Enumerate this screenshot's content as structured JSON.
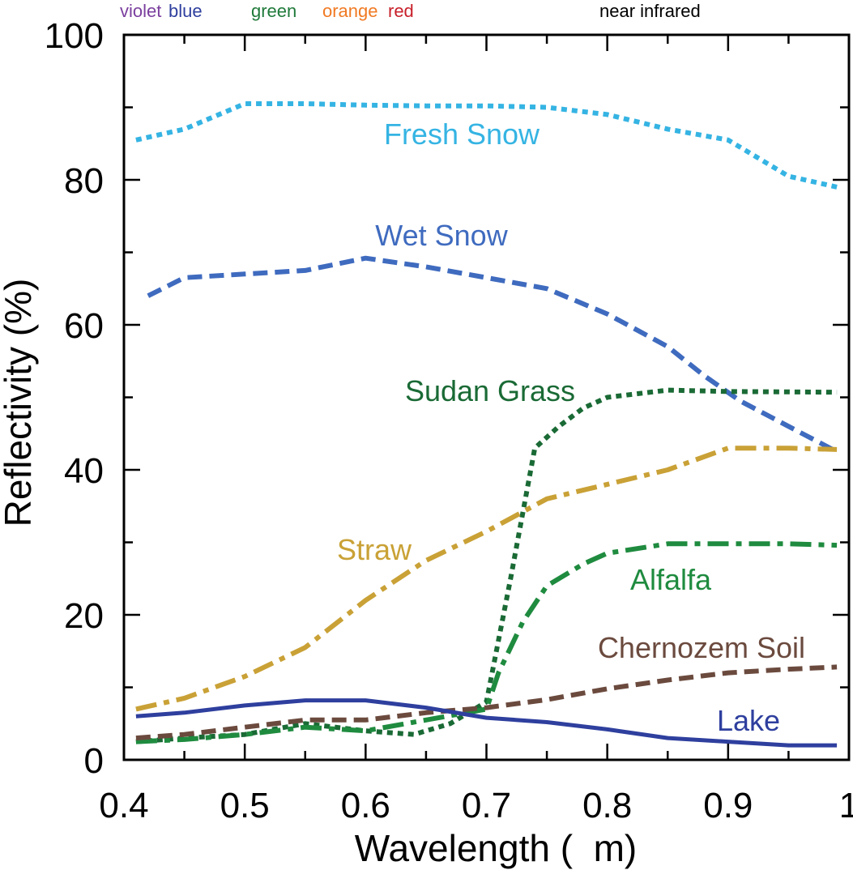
{
  "chart_data": {
    "type": "line",
    "xlabel": "Wavelength (  m)",
    "ylabel": "Reflectivity (%)",
    "xlim": [
      0.4,
      1.0
    ],
    "ylim": [
      0,
      100
    ],
    "x_ticks": [
      "0.4",
      "0.5",
      "0.6",
      "0.7",
      "0.8",
      "0.9",
      "1"
    ],
    "y_ticks": [
      "0",
      "20",
      "40",
      "60",
      "80",
      "100"
    ],
    "grid": false,
    "color_bands": [
      {
        "label": "violet",
        "color": "#7b3f9e"
      },
      {
        "label": "blue",
        "color": "#2e3f9e"
      },
      {
        "label": "green",
        "color": "#1f7a3a"
      },
      {
        "label": "orange",
        "color": "#f07a22"
      },
      {
        "label": "red",
        "color": "#c8202a"
      },
      {
        "label": "near infrared",
        "color": "#000000"
      }
    ],
    "series": [
      {
        "name": "Fresh Snow",
        "color": "#35b4e3",
        "style": "dotted",
        "x": [
          0.41,
          0.45,
          0.5,
          0.55,
          0.6,
          0.65,
          0.7,
          0.75,
          0.8,
          0.85,
          0.9,
          0.95,
          0.99
        ],
        "y": [
          85.5,
          87,
          90.5,
          90.5,
          90.3,
          90.2,
          90.2,
          90,
          89,
          87,
          85.5,
          80.5,
          79
        ]
      },
      {
        "name": "Wet Snow",
        "color": "#3f6bbf",
        "style": "dashed",
        "x": [
          0.42,
          0.45,
          0.5,
          0.55,
          0.6,
          0.65,
          0.7,
          0.75,
          0.8,
          0.85,
          0.88,
          0.91,
          0.95,
          0.99
        ],
        "y": [
          64,
          66.5,
          67,
          67.5,
          69.2,
          68,
          66.5,
          65,
          61.5,
          57,
          53,
          49.5,
          46,
          42.5
        ]
      },
      {
        "name": "Sudan Grass",
        "color": "#1a6a35",
        "style": "dotted",
        "x": [
          0.41,
          0.45,
          0.5,
          0.55,
          0.6,
          0.64,
          0.67,
          0.69,
          0.7,
          0.72,
          0.74,
          0.76,
          0.78,
          0.8,
          0.85,
          0.9,
          0.99
        ],
        "y": [
          2.5,
          3,
          3.5,
          5,
          4,
          3.5,
          5,
          7,
          8,
          25,
          43,
          46,
          48.5,
          50,
          51,
          50.8,
          50.7
        ]
      },
      {
        "name": "Straw",
        "color": "#c9a136",
        "style": "dashdot",
        "x": [
          0.41,
          0.45,
          0.5,
          0.55,
          0.6,
          0.65,
          0.7,
          0.75,
          0.8,
          0.85,
          0.9,
          0.95,
          0.99
        ],
        "y": [
          7,
          8.5,
          11.5,
          15.5,
          22,
          27.5,
          31.5,
          36,
          38,
          40,
          43,
          43,
          42.8
        ]
      },
      {
        "name": "Alfalfa",
        "color": "#1f8b3f",
        "style": "dashdot",
        "x": [
          0.41,
          0.45,
          0.5,
          0.55,
          0.6,
          0.65,
          0.7,
          0.71,
          0.73,
          0.75,
          0.78,
          0.8,
          0.85,
          0.9,
          0.95,
          0.99
        ],
        "y": [
          2.5,
          2.8,
          3.5,
          4.5,
          4,
          5.5,
          7,
          12,
          19,
          24,
          27,
          28.5,
          29.8,
          29.8,
          29.8,
          29.6
        ]
      },
      {
        "name": "Chernozem Soil",
        "color": "#6b4a3e",
        "style": "dashed",
        "x": [
          0.41,
          0.45,
          0.5,
          0.55,
          0.6,
          0.65,
          0.7,
          0.75,
          0.8,
          0.85,
          0.9,
          0.95,
          0.99
        ],
        "y": [
          3,
          3.5,
          4.5,
          5.5,
          5.5,
          6.5,
          7.2,
          8.3,
          9.8,
          11,
          12,
          12.5,
          12.8
        ]
      },
      {
        "name": "Lake",
        "color": "#2e3f9e",
        "style": "solid",
        "x": [
          0.41,
          0.45,
          0.5,
          0.55,
          0.6,
          0.65,
          0.7,
          0.75,
          0.8,
          0.85,
          0.9,
          0.95,
          0.99
        ],
        "y": [
          6,
          6.5,
          7.5,
          8.2,
          8.2,
          7.2,
          5.8,
          5.2,
          4.2,
          3,
          2.5,
          2,
          2
        ]
      }
    ]
  }
}
